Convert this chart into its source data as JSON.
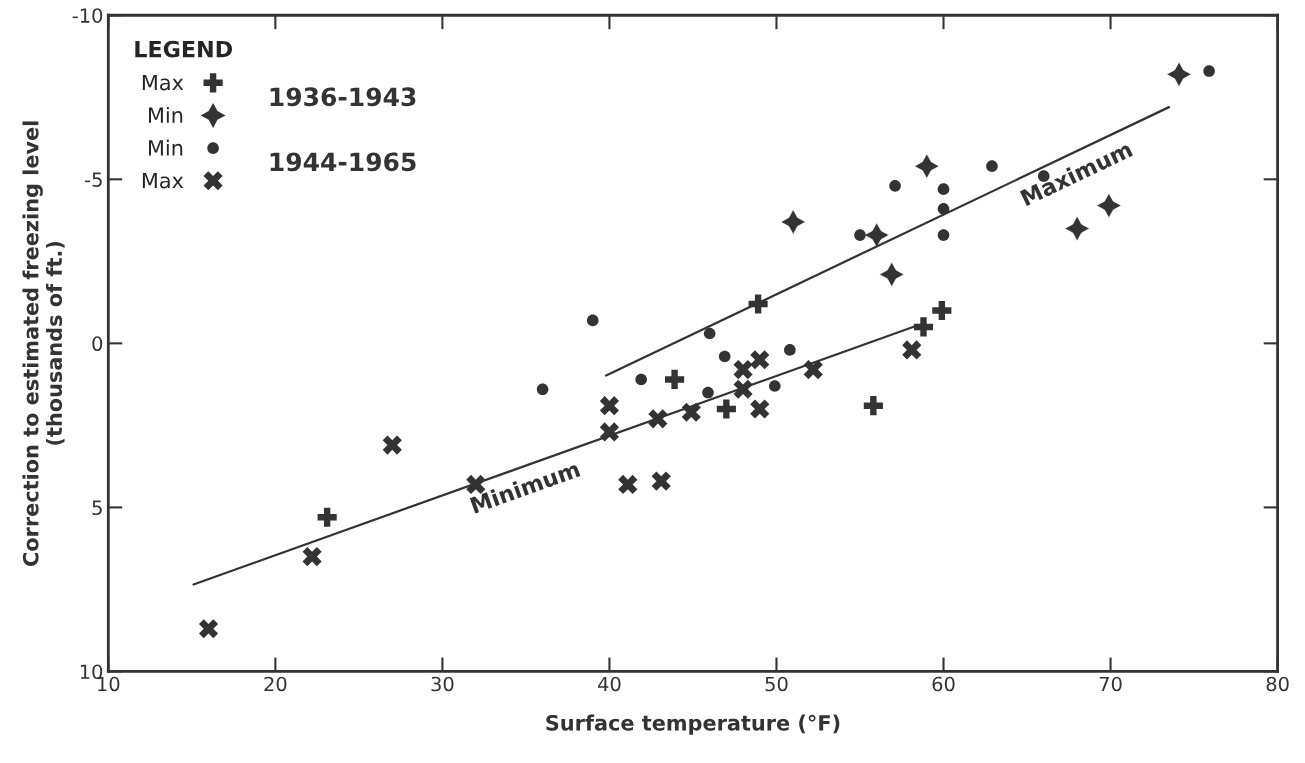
{
  "chart_data": {
    "type": "scatter",
    "xlabel": "Surface temperature (°F)",
    "ylabel": "Correction to estimated freezing level\n(thousands of ft.)",
    "legend_title": "LEGEND",
    "legend": "top left",
    "grid": false,
    "xlim": [
      10,
      80
    ],
    "xticks": [
      10,
      20,
      30,
      40,
      50,
      60,
      70,
      80
    ],
    "ylim": [
      10,
      -10
    ],
    "yticks": [
      -10,
      -5,
      0,
      5,
      10
    ],
    "annotations": [
      "1936-1943",
      "1944-1965"
    ],
    "series": [
      {
        "name": "Max",
        "marker": "cross",
        "color": "#333333",
        "x": [
          23.1,
          48.9,
          59.9,
          58.8,
          43.9,
          47.0,
          55.8
        ],
        "values": [
          5.3,
          -1.2,
          -1.0,
          -0.5,
          1.1,
          2.0,
          1.9
        ]
      },
      {
        "name": "Min",
        "marker": "star",
        "color": "#333333",
        "x": [
          56.9,
          74.1,
          69.9,
          68.0,
          51.0,
          56.0,
          59.0
        ],
        "values": [
          -2.1,
          -8.2,
          -4.2,
          -3.5,
          -3.7,
          -3.3,
          -5.4
        ]
      },
      {
        "name": "Min",
        "marker": "circle",
        "color": "#333333",
        "x": [
          36.0,
          39.0,
          46.0,
          46.9,
          50.8,
          41.9,
          45.9,
          49.9,
          75.9,
          62.9,
          66.0,
          55.0,
          57.1,
          60.0,
          60.0,
          60.0
        ],
        "values": [
          1.4,
          -0.7,
          -0.3,
          0.4,
          0.2,
          1.1,
          1.5,
          1.3,
          -8.3,
          -5.4,
          -5.1,
          -3.3,
          -4.8,
          -4.7,
          -4.1,
          -3.3
        ]
      },
      {
        "name": "Max",
        "marker": "cross",
        "color": "#333333",
        "x": [
          16.0,
          22.2,
          27.0,
          32.0,
          49.0,
          48.0,
          52.2,
          58.1,
          48.0,
          40.0,
          49.0,
          44.9,
          42.9,
          40.0,
          41.1,
          43.1
        ],
        "values": [
          8.7,
          6.5,
          3.1,
          4.3,
          0.5,
          0.8,
          0.8,
          0.2,
          1.4,
          1.9,
          2.0,
          2.1,
          2.3,
          2.7,
          4.3,
          4.2
        ]
      },
      {
        "type": "line",
        "name": "Maximum",
        "color": "#333333",
        "x": [
          39.8,
          73.5
        ],
        "values": [
          0.98,
          -7.2
        ]
      },
      {
        "type": "line",
        "name": "Minimum",
        "color": "#333333",
        "x": [
          15.1,
          58.3
        ],
        "values": [
          7.35,
          -0.52
        ]
      }
    ]
  }
}
